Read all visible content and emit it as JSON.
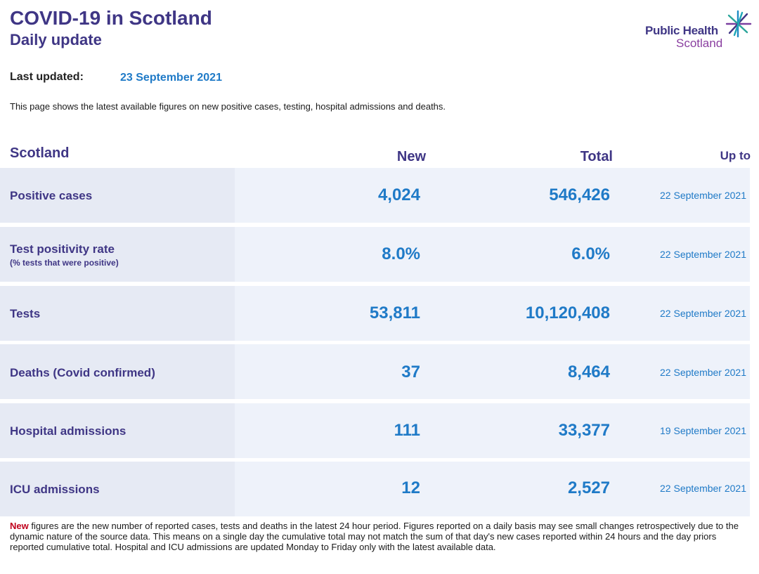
{
  "header": {
    "title": "COVID-19 in Scotland",
    "subtitle": "Daily update",
    "logo_line1": "Public Health",
    "logo_line2": "Scotland"
  },
  "updated": {
    "label": "Last updated:",
    "value": "23 September 2021"
  },
  "intro": "This page shows the latest available figures on new positive cases, testing, hospital admissions and deaths.",
  "table": {
    "columns": {
      "region": "Scotland",
      "new": "New",
      "total": "Total",
      "upto": "Up to"
    },
    "rows": [
      {
        "label": "Positive cases",
        "sublabel": "",
        "new": "4,024",
        "total": "546,426",
        "upto": "22 September 2021"
      },
      {
        "label": "Test positivity rate",
        "sublabel": "(% tests that were positive)",
        "new": "8.0%",
        "total": "6.0%",
        "upto": "22 September 2021"
      },
      {
        "label": "Tests",
        "sublabel": "",
        "new": "53,811",
        "total": "10,120,408",
        "upto": "22 September 2021"
      },
      {
        "label": "Deaths (Covid confirmed)",
        "sublabel": "",
        "new": "37",
        "total": "8,464",
        "upto": "22 September 2021"
      },
      {
        "label": "Hospital admissions",
        "sublabel": "",
        "new": "111",
        "total": "33,377",
        "upto": "19 September 2021"
      },
      {
        "label": "ICU admissions",
        "sublabel": "",
        "new": "12",
        "total": "2,527",
        "upto": "22 September 2021"
      }
    ]
  },
  "footnote": {
    "highlight": "New",
    "text": " figures are the new number of reported cases, tests and deaths in the latest 24 hour period. Figures reported on a daily basis may see small changes retrospectively due to the dynamic nature of the source data. This means on a single day the cumulative total may not match the sum of that day's new cases reported within 24 hours and the day priors reported cumulative total. Hospital and ICU admissions are updated Monday to Friday only with the latest available data."
  },
  "colors": {
    "brand_purple": "#3f3685",
    "value_blue": "#1f7ac7",
    "highlight_red": "#c0001b"
  }
}
